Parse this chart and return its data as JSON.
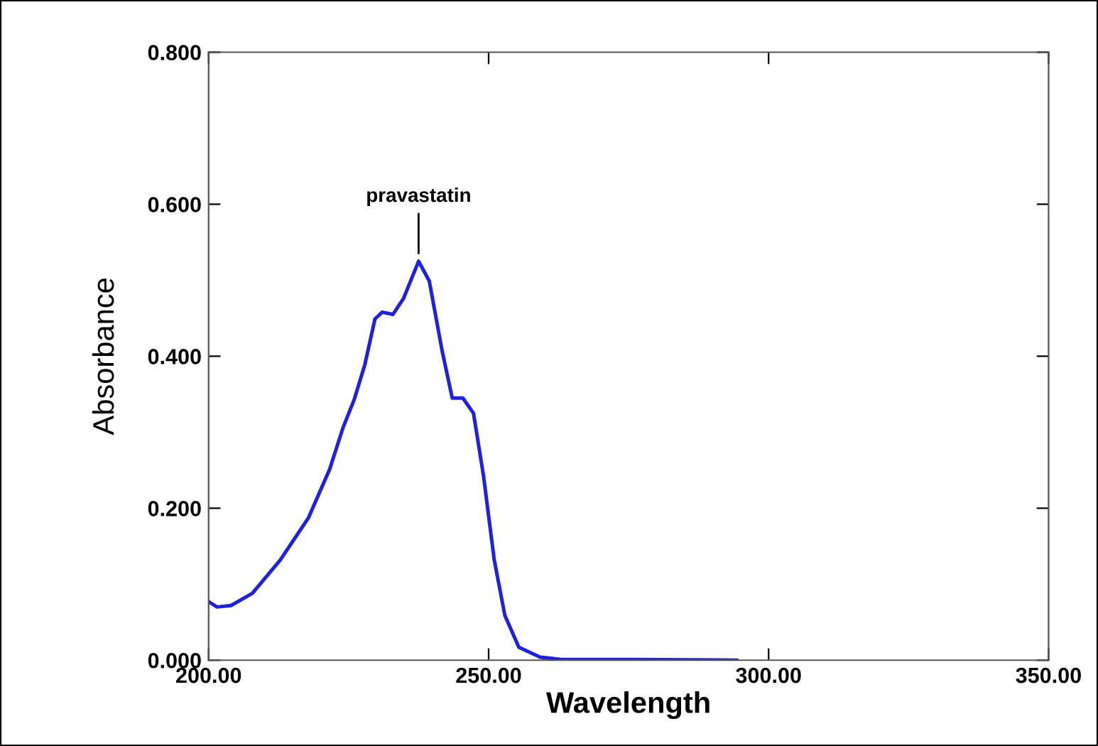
{
  "chart_data": {
    "type": "line",
    "xlabel": "Wavelength",
    "ylabel": "Absorbance",
    "x": [
      200,
      201.5,
      204,
      207.8,
      212.8,
      217.8,
      221.6,
      224,
      226,
      227.9,
      229.7,
      231,
      232.9,
      234.8,
      237.5,
      239.4,
      241.7,
      243.5,
      245.4,
      247.3,
      249.1,
      251,
      252.9,
      255.4,
      259.2,
      263,
      275.5,
      294.3
    ],
    "series": [
      {
        "color": "#2020e0",
        "values": [
          0.077,
          0.07,
          0.072,
          0.088,
          0.132,
          0.187,
          0.251,
          0.306,
          0.343,
          0.389,
          0.449,
          0.458,
          0.455,
          0.476,
          0.525,
          0.499,
          0.407,
          0.345,
          0.345,
          0.325,
          0.242,
          0.132,
          0.059,
          0.017,
          0.004,
          0.001,
          0.001,
          0.0
        ]
      }
    ],
    "annotations": [
      {
        "text": "pravastatin",
        "x": 237.5,
        "y": 0.525
      }
    ],
    "xlim": [
      200,
      350
    ],
    "ylim": [
      0,
      0.8
    ],
    "xticks": [
      {
        "value": 200,
        "label": "200.00"
      },
      {
        "value": 250,
        "label": "250.00"
      },
      {
        "value": 300,
        "label": "300.00"
      },
      {
        "value": 350,
        "label": "350.00"
      }
    ],
    "yticks": [
      {
        "value": 0,
        "label": "0.000"
      },
      {
        "value": 0.2,
        "label": "0.200"
      },
      {
        "value": 0.4,
        "label": "0.400"
      },
      {
        "value": 0.6,
        "label": "0.600"
      },
      {
        "value": 0.8,
        "label": "0.800"
      }
    ],
    "grid": false,
    "legend": false,
    "marker": "none",
    "line_style": "solid"
  }
}
